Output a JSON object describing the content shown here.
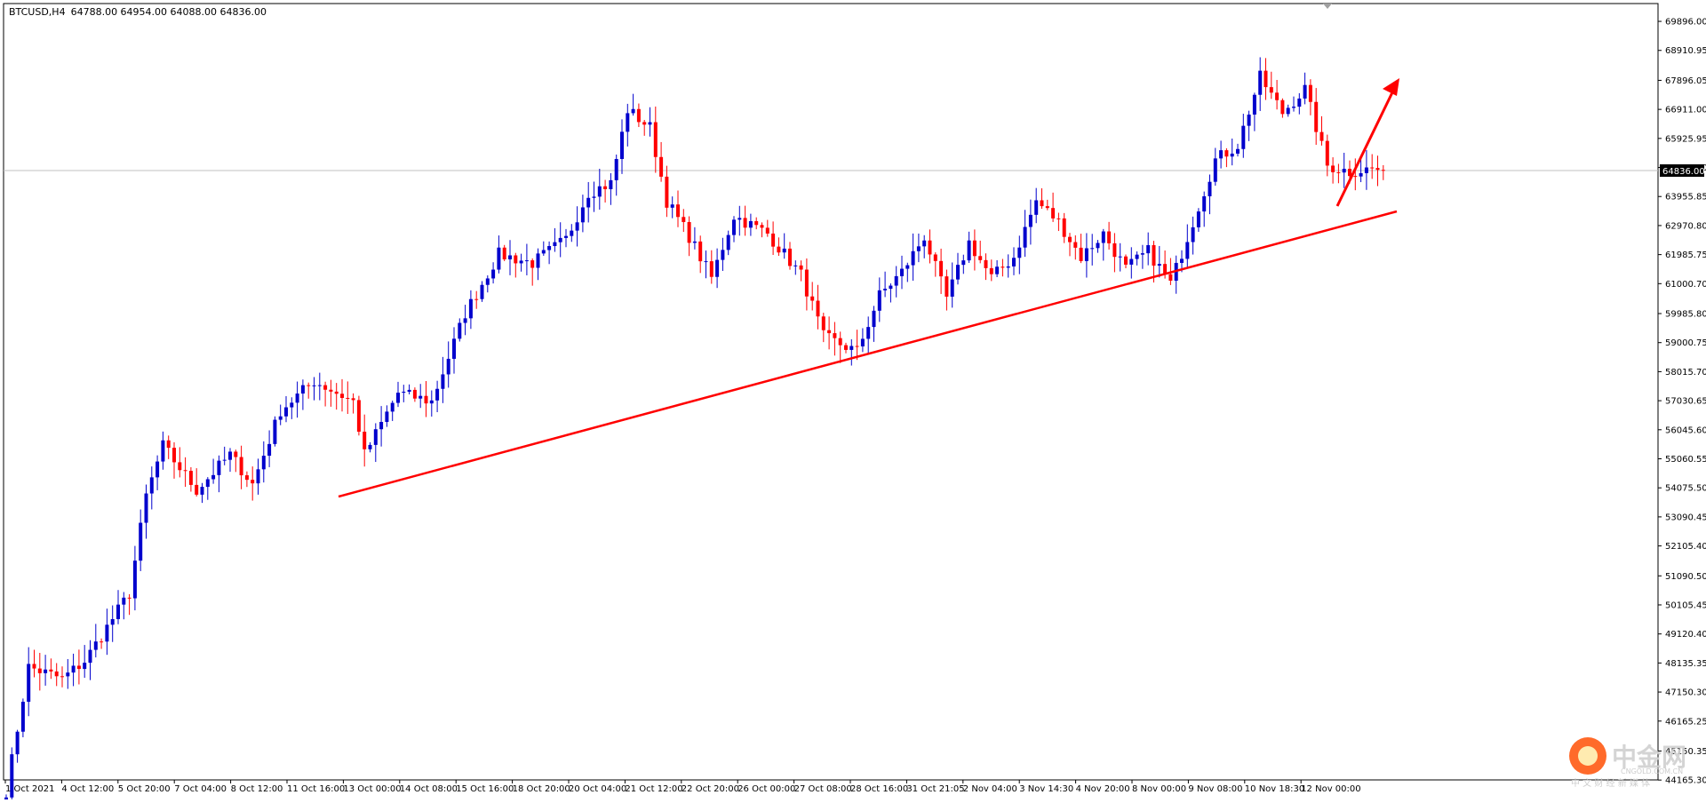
{
  "header": {
    "symbol_timeframe": "BTCUSD,H4",
    "ohlc": "64788.00 64954.00 64088.00 64836.00"
  },
  "price_label": "64836.00",
  "watermark": {
    "name": "中金网",
    "domain": "CNGOLD.COM.CN",
    "slogan": "中 文 财 经 新 媒 体"
  },
  "colors": {
    "bull": "#0000cd",
    "bear": "#ff0000",
    "trendline": "#ff0000",
    "arrow": "#ff0000",
    "price_line": "#c0c0c0"
  },
  "chart_data": {
    "type": "candlestick",
    "title": "BTCUSD,H4",
    "ylim": [
      44170,
      70500
    ],
    "y_ticks": [
      "69896.00",
      "68910.95",
      "67896.05",
      "66911.00",
      "65925.95",
      "64940.90",
      "63955.85",
      "62970.80",
      "61985.75",
      "61000.70",
      "59985.80",
      "59000.75",
      "58015.70",
      "57030.65",
      "56045.60",
      "55060.55",
      "54075.50",
      "53090.45",
      "52105.40",
      "51090.50",
      "50105.45",
      "49120.40",
      "48135.35",
      "47150.30",
      "46165.25",
      "45150.35",
      "44165.30"
    ],
    "x_ticks": [
      "1 Oct 2021",
      "4 Oct 12:00",
      "5 Oct 20:00",
      "7 Oct 04:00",
      "8 Oct 12:00",
      "11 Oct 16:00",
      "13 Oct 00:00",
      "14 Oct 08:00",
      "15 Oct 16:00",
      "18 Oct 20:00",
      "20 Oct 04:00",
      "21 Oct 12:00",
      "22 Oct 20:00",
      "26 Oct 00:00",
      "27 Oct 08:00",
      "28 Oct 16:00",
      "31 Oct 21:05",
      "2 Nov 04:00",
      "3 Nov 14:30",
      "4 Nov 20:00",
      "8 Nov 00:00",
      "9 Nov 08:00",
      "10 Nov 18:30",
      "12 Nov 00:00"
    ],
    "last_price": 64836.0,
    "anchors": [
      [
        0,
        43800
      ],
      [
        4,
        48000
      ],
      [
        10,
        47600
      ],
      [
        14,
        48200
      ],
      [
        22,
        50500
      ],
      [
        25,
        53800
      ],
      [
        28,
        55500
      ],
      [
        34,
        54000
      ],
      [
        40,
        55200
      ],
      [
        44,
        54200
      ],
      [
        49,
        56700
      ],
      [
        55,
        57700
      ],
      [
        62,
        57000
      ],
      [
        64,
        55200
      ],
      [
        70,
        57300
      ],
      [
        76,
        57000
      ],
      [
        82,
        60000
      ],
      [
        88,
        62000
      ],
      [
        94,
        61700
      ],
      [
        100,
        62500
      ],
      [
        104,
        64100
      ],
      [
        108,
        64400
      ],
      [
        111,
        66900
      ],
      [
        115,
        66300
      ],
      [
        118,
        63800
      ],
      [
        122,
        62600
      ],
      [
        126,
        61200
      ],
      [
        130,
        63300
      ],
      [
        136,
        62700
      ],
      [
        142,
        61300
      ],
      [
        146,
        59200
      ],
      [
        152,
        58700
      ],
      [
        156,
        60600
      ],
      [
        160,
        61400
      ],
      [
        164,
        62600
      ],
      [
        168,
        60500
      ],
      [
        172,
        62400
      ],
      [
        176,
        61200
      ],
      [
        180,
        61900
      ],
      [
        184,
        63800
      ],
      [
        188,
        63100
      ],
      [
        192,
        61900
      ],
      [
        196,
        62700
      ],
      [
        200,
        61500
      ],
      [
        204,
        62100
      ],
      [
        208,
        61000
      ],
      [
        212,
        63100
      ],
      [
        216,
        65200
      ],
      [
        220,
        65700
      ],
      [
        224,
        68000
      ],
      [
        228,
        66800
      ],
      [
        232,
        67600
      ],
      [
        236,
        65000
      ],
      [
        240,
        64800
      ],
      [
        244,
        64900
      ],
      [
        246,
        64836
      ]
    ]
  }
}
